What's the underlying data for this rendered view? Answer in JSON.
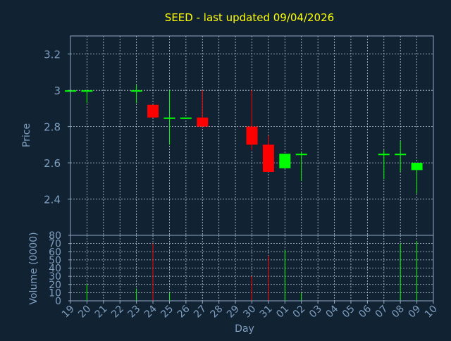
{
  "colors": {
    "background": "#112233",
    "title": "#ffff00",
    "axis_text": "#7f9fbf",
    "frame": "#8fa8c4",
    "grid": "#c0c8d0",
    "up": "#00ff00",
    "down": "#ff0000"
  },
  "chart_data": {
    "type": "candlestick",
    "title": "SEED - last updated 09/04/2026",
    "xlabel": "Day",
    "grid": true,
    "categories": [
      "19",
      "20",
      "21",
      "22",
      "23",
      "24",
      "25",
      "26",
      "27",
      "28",
      "29",
      "30",
      "31",
      "01",
      "02",
      "03",
      "04",
      "05",
      "06",
      "07",
      "08",
      "09",
      "10"
    ],
    "price_panel": {
      "ylabel": "Price",
      "ylim": [
        2.2,
        3.3
      ],
      "yticks": [
        2.4,
        2.6,
        2.8,
        3,
        3.2
      ],
      "ytick_labels": [
        "2.4",
        "2.6",
        "2.8",
        "3",
        "3.2"
      ],
      "candles": [
        {
          "x": "19",
          "open": 3.0,
          "high": 3.0,
          "low": 3.0,
          "close": 3.0
        },
        {
          "x": "20",
          "open": 3.0,
          "high": 3.0,
          "low": 2.93,
          "close": 3.0
        },
        {
          "x": "23",
          "open": 3.0,
          "high": 3.03,
          "low": 2.93,
          "close": 3.0
        },
        {
          "x": "24",
          "open": 2.92,
          "high": 2.92,
          "low": 2.85,
          "close": 2.85
        },
        {
          "x": "25",
          "open": 2.85,
          "high": 3.0,
          "low": 2.7,
          "close": 2.85
        },
        {
          "x": "26",
          "open": 2.85,
          "high": 2.85,
          "low": 2.85,
          "close": 2.85
        },
        {
          "x": "27",
          "open": 2.85,
          "high": 3.0,
          "low": 2.8,
          "close": 2.8
        },
        {
          "x": "30",
          "open": 2.8,
          "high": 3.0,
          "low": 2.67,
          "close": 2.7
        },
        {
          "x": "31",
          "open": 2.7,
          "high": 2.75,
          "low": 2.55,
          "close": 2.55
        },
        {
          "x": "01",
          "open": 2.57,
          "high": 2.65,
          "low": 2.57,
          "close": 2.65
        },
        {
          "x": "02",
          "open": 2.65,
          "high": 2.66,
          "low": 2.5,
          "close": 2.65
        },
        {
          "x": "07",
          "open": 2.65,
          "high": 2.67,
          "low": 2.51,
          "close": 2.65
        },
        {
          "x": "08",
          "open": 2.65,
          "high": 2.72,
          "low": 2.55,
          "close": 2.65
        },
        {
          "x": "09",
          "open": 2.56,
          "high": 2.6,
          "low": 2.43,
          "close": 2.6
        }
      ]
    },
    "volume_panel": {
      "ylabel": "Volume (0000)",
      "ylim": [
        0,
        80
      ],
      "yticks": [
        0,
        10,
        20,
        30,
        40,
        50,
        60,
        70,
        80
      ],
      "ytick_labels": [
        "0",
        "10",
        "20",
        "30",
        "40",
        "50",
        "60",
        "70",
        "80"
      ],
      "bars": [
        {
          "x": "20",
          "value": 20,
          "direction": "up"
        },
        {
          "x": "23",
          "value": 15,
          "direction": "up"
        },
        {
          "x": "24",
          "value": 70,
          "direction": "down"
        },
        {
          "x": "25",
          "value": 10,
          "direction": "up"
        },
        {
          "x": "30",
          "value": 30,
          "direction": "down"
        },
        {
          "x": "31",
          "value": 55,
          "direction": "down"
        },
        {
          "x": "01",
          "value": 62,
          "direction": "up"
        },
        {
          "x": "02",
          "value": 10,
          "direction": "up"
        },
        {
          "x": "08",
          "value": 70,
          "direction": "up"
        },
        {
          "x": "09",
          "value": 73,
          "direction": "up"
        }
      ]
    }
  }
}
